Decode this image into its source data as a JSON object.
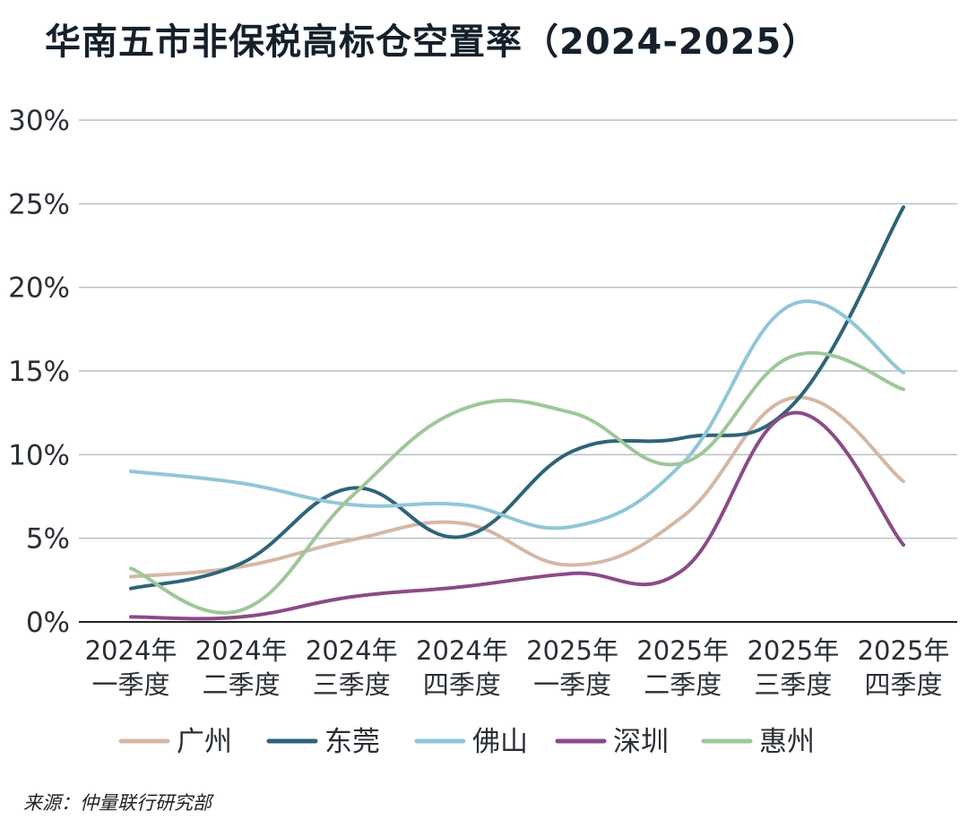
{
  "title": "华南五市非保税高标仓空置率（2024-2025）",
  "source": "来源：仲量联行研究部",
  "chart_data": {
    "type": "line",
    "title": "华南五市非保税高标仓空置率（2024-2025）",
    "xlabel": "",
    "ylabel": "",
    "ylim": [
      0,
      30
    ],
    "yticks": [
      0,
      5,
      10,
      15,
      20,
      25,
      30
    ],
    "ytick_labels": [
      "0%",
      "5%",
      "10%",
      "15%",
      "20%",
      "25%",
      "30%"
    ],
    "grid": true,
    "legend_position": "bottom",
    "categories": [
      [
        "2024年",
        "一季度"
      ],
      [
        "2024年",
        "二季度"
      ],
      [
        "2024年",
        "三季度"
      ],
      [
        "2024年",
        "四季度"
      ],
      [
        "2025年",
        "一季度"
      ],
      [
        "2025年",
        "二季度"
      ],
      [
        "2025年",
        "三季度"
      ],
      [
        "2025年",
        "四季度"
      ]
    ],
    "series": [
      {
        "name": "广州",
        "color": "#d4b8a6",
        "values": [
          2.7,
          3.3,
          4.9,
          5.9,
          3.4,
          6.3,
          13.4,
          8.4
        ]
      },
      {
        "name": "东莞",
        "color": "#2e6478",
        "values": [
          2.0,
          3.5,
          8.0,
          5.1,
          10.2,
          11.0,
          13.0,
          24.8
        ]
      },
      {
        "name": "佛山",
        "color": "#91c6d8",
        "values": [
          9.0,
          8.3,
          7.0,
          7.0,
          5.7,
          9.5,
          19.0,
          14.9
        ]
      },
      {
        "name": "深圳",
        "color": "#8c4a88",
        "values": [
          0.3,
          0.3,
          1.5,
          2.1,
          2.9,
          3.1,
          12.5,
          4.6
        ]
      },
      {
        "name": "惠州",
        "color": "#9ec79a",
        "values": [
          3.2,
          0.7,
          7.5,
          12.7,
          12.5,
          9.5,
          15.9,
          13.9
        ]
      }
    ]
  }
}
